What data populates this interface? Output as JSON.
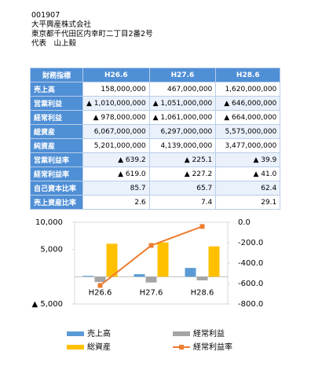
{
  "header": {
    "code": "001907",
    "company": "大平興産株式会社",
    "address": "東京都千代田区内幸町二丁目2番2号",
    "representative": "代表　山上毅"
  },
  "table": {
    "header": [
      "財務指標",
      "H26.6",
      "H27.6",
      "H28.6"
    ],
    "rows": [
      [
        "売上高",
        "158,000,000",
        "467,000,000",
        "1,620,000,000"
      ],
      [
        "営業利益",
        "▲ 1,010,000,000",
        "▲ 1,051,000,000",
        "▲ 646,000,000"
      ],
      [
        "経常利益",
        "▲ 978,000,000",
        "▲ 1,061,000,000",
        "▲ 664,000,000"
      ],
      [
        "総資産",
        "6,067,000,000",
        "6,297,000,000",
        "5,575,000,000"
      ],
      [
        "純資産",
        "5,201,000,000",
        "4,139,000,000",
        "3,477,000,000"
      ],
      [
        "営業利益率",
        "▲ 639.2",
        "▲ 225.1",
        "▲ 39.9"
      ],
      [
        "経常利益率",
        "▲ 619.0",
        "▲ 227.2",
        "▲ 41.0"
      ],
      [
        "自己資本比率",
        "85.7",
        "65.7",
        "62.4"
      ],
      [
        "売上資産比率",
        "2.6",
        "7.4",
        "29.1"
      ]
    ]
  },
  "chart_data": {
    "type": "bar",
    "categories": [
      "H26.6",
      "H27.6",
      "H28.6"
    ],
    "series": [
      {
        "name": "売上高",
        "color": "#5b9bd5",
        "values": [
          158,
          467,
          1620
        ]
      },
      {
        "name": "経常利益",
        "color": "#a5a5a5",
        "values": [
          -978,
          -1061,
          -664
        ]
      },
      {
        "name": "総資産",
        "color": "#ffc000",
        "values": [
          6067,
          6297,
          5575
        ]
      },
      {
        "name": "経常利益率",
        "color": "#ed7d31",
        "type": "line",
        "axis": "y2",
        "values": [
          -619.0,
          -227.2,
          -41.0
        ]
      }
    ],
    "ylim": [
      -5000,
      10000
    ],
    "yticks": [
      {
        "value": 10000,
        "label": "10,000"
      },
      {
        "value": 5000,
        "label": "5,000"
      },
      {
        "value": -5000,
        "label": "▲ 5,000"
      }
    ],
    "y2lim": [
      -800,
      0
    ],
    "y2ticks": [
      {
        "value": 0,
        "label": "0.0"
      },
      {
        "value": -200,
        "label": "-200.0"
      },
      {
        "value": -400,
        "label": "-400.0"
      },
      {
        "value": -600,
        "label": "-600.0"
      },
      {
        "value": -800,
        "label": "-800.0"
      }
    ],
    "grid": false
  }
}
